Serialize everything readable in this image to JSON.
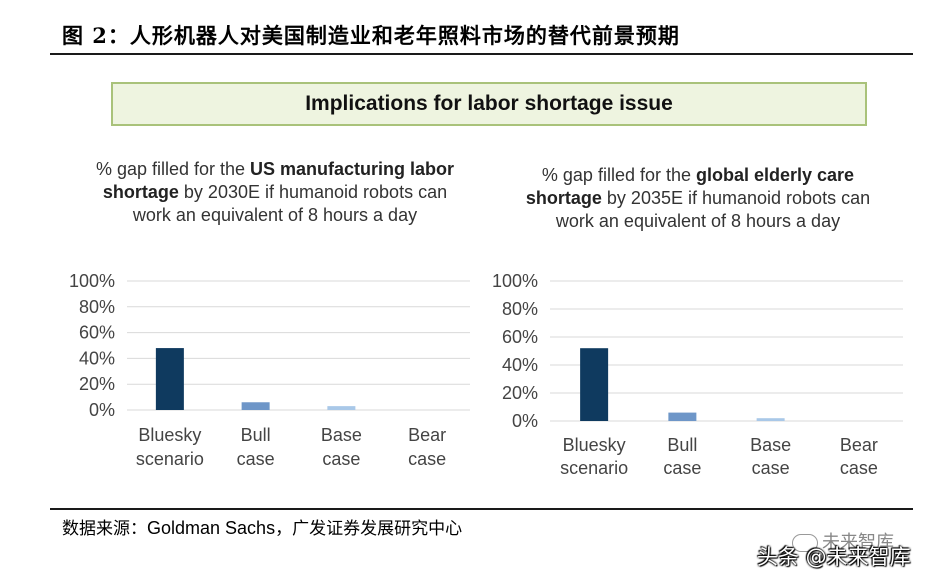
{
  "figure_title": "图  2：人形机器人对美国制造业和老年照料市场的替代前景预期",
  "banner": "Implications for labor shortage issue",
  "left": {
    "subtitle_pre": "% gap filled for the ",
    "subtitle_bold": "US manufacturing labor shortage",
    "subtitle_post": " by 2030E if humanoid robots can work an equivalent of 8 hours a day"
  },
  "right": {
    "subtitle_pre": "% gap filled for the ",
    "subtitle_bold": "global elderly care shortage",
    "subtitle_post": " by 2035E if humanoid robots can work an equivalent of 8 hours a day"
  },
  "source": {
    "label": "数据来源：",
    "name": "Goldman Sachs",
    "rest": "，广发证券发展研究中心"
  },
  "watermark_top": "未来智库",
  "watermark_bottom": "头条 @未来智库",
  "colors": {
    "bluesky": "#0f3a5f",
    "bull": "#6e96c8",
    "base": "#a9c8e8",
    "bear": "#c9dcef",
    "banner_border": "#a9c27a"
  },
  "chart_data": [
    {
      "type": "bar",
      "categories": [
        [
          "Bluesky",
          "scenario"
        ],
        [
          "Bull",
          "case"
        ],
        [
          "Base",
          "case"
        ],
        [
          "Bear",
          "case"
        ]
      ],
      "values": [
        48,
        6,
        3,
        0
      ],
      "ylim": [
        0,
        100
      ],
      "yticks": [
        0,
        20,
        40,
        60,
        80,
        100
      ],
      "ytick_labels": [
        "0%",
        "20%",
        "40%",
        "60%",
        "80%",
        "100%"
      ],
      "grid": true,
      "xlabel": "",
      "ylabel": ""
    },
    {
      "type": "bar",
      "categories": [
        [
          "Bluesky",
          "scenario"
        ],
        [
          "Bull",
          "case"
        ],
        [
          "Base",
          "case"
        ],
        [
          "Bear",
          "case"
        ]
      ],
      "values": [
        52,
        6,
        2,
        0
      ],
      "ylim": [
        0,
        100
      ],
      "yticks": [
        0,
        20,
        40,
        60,
        80,
        100
      ],
      "ytick_labels": [
        "0%",
        "20%",
        "40%",
        "60%",
        "80%",
        "100%"
      ],
      "grid": true,
      "xlabel": "",
      "ylabel": ""
    }
  ]
}
